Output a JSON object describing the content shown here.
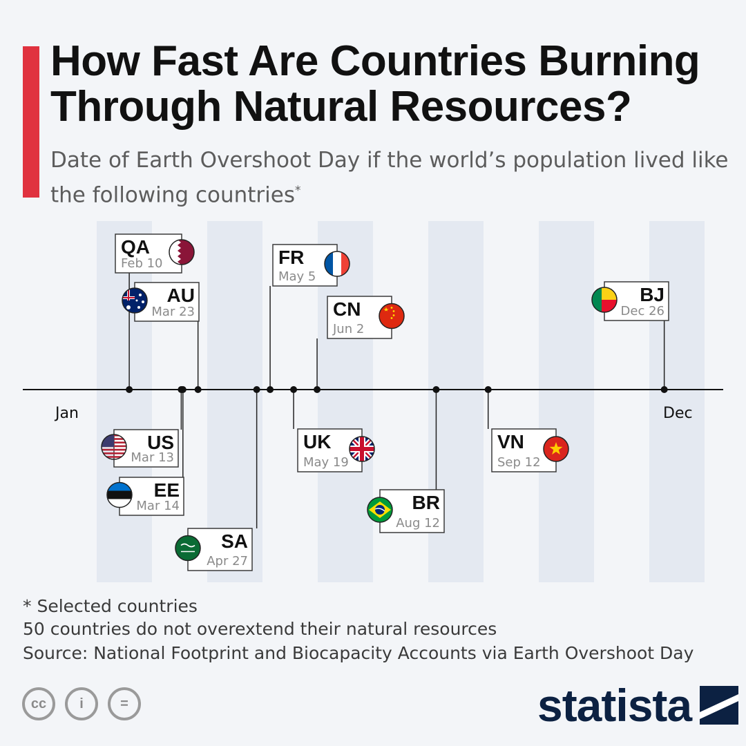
{
  "title": "How Fast Are Countries Burning Through Natural Resources?",
  "subtitle": "Date of Earth Overshoot Day if the world’s population lived like the following countries",
  "subtitle_mark": "*",
  "notes": {
    "selected": "* Selected countries",
    "count_note": "50 countries do not overextend their natural resources",
    "source": "Source: National Footprint and Biocapacity Accounts via Earth Overshoot Day"
  },
  "license_icons": [
    "cc-icon",
    "attribution-icon",
    "no-derivatives-icon"
  ],
  "license_glyphs": [
    "cc",
    "i",
    "="
  ],
  "brand": {
    "name": "statista",
    "color": "#0c2142"
  },
  "colors": {
    "accent": "#e0323f",
    "band": "#e4e9f1",
    "box_border": "#3a3a3a"
  },
  "chart_data": {
    "type": "timeline",
    "axis_labels": {
      "start": "Jan",
      "end": "Dec"
    },
    "points": [
      {
        "code": "QA",
        "date": "Feb 10",
        "flag": "qatar-flag"
      },
      {
        "code": "AU",
        "date": "Mar 23",
        "flag": "australia-flag"
      },
      {
        "code": "US",
        "date": "Mar 13",
        "flag": "usa-flag"
      },
      {
        "code": "EE",
        "date": "Mar 14",
        "flag": "estonia-flag"
      },
      {
        "code": "SA",
        "date": "Apr 27",
        "flag": "saudi-arabia-flag"
      },
      {
        "code": "FR",
        "date": "May 5",
        "flag": "france-flag"
      },
      {
        "code": "UK",
        "date": "May 19",
        "flag": "uk-flag"
      },
      {
        "code": "CN",
        "date": "Jun 2",
        "flag": "china-flag"
      },
      {
        "code": "BR",
        "date": "Aug 12",
        "flag": "brazil-flag"
      },
      {
        "code": "VN",
        "date": "Sep 12",
        "flag": "vietnam-flag"
      },
      {
        "code": "BJ",
        "date": "Dec 26",
        "flag": "benin-flag"
      }
    ]
  }
}
